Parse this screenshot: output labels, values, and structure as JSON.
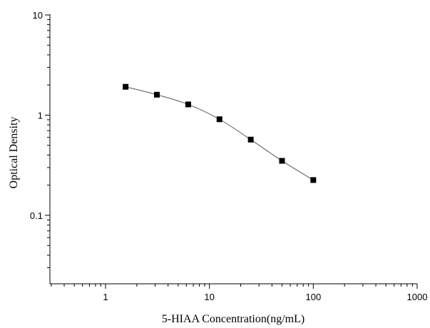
{
  "chart_data": {
    "type": "scatter",
    "title": "",
    "xlabel": "5-HIAA Concentration(ng/mL)",
    "ylabel": "Optical Density",
    "x_scale": "log",
    "y_scale": "log",
    "xlim": [
      0.3,
      1000
    ],
    "ylim": [
      0.02,
      10
    ],
    "x_ticks": [
      {
        "value": 1,
        "label": "1"
      },
      {
        "value": 10,
        "label": "10"
      },
      {
        "value": 100,
        "label": "100"
      },
      {
        "value": 1000,
        "label": "1000"
      }
    ],
    "y_ticks": [
      {
        "value": 0.1,
        "label": "0.1"
      },
      {
        "value": 1,
        "label": "1"
      },
      {
        "value": 10,
        "label": "10"
      }
    ],
    "grid": false,
    "legend": "none",
    "series": [
      {
        "x": [
          1.56,
          3.12,
          6.25,
          12.5,
          25,
          50,
          100
        ],
        "y": [
          1.92,
          1.6,
          1.28,
          0.91,
          0.57,
          0.35,
          0.225
        ],
        "marker": "square",
        "color": "#000000",
        "line_color": "#555555"
      }
    ]
  }
}
